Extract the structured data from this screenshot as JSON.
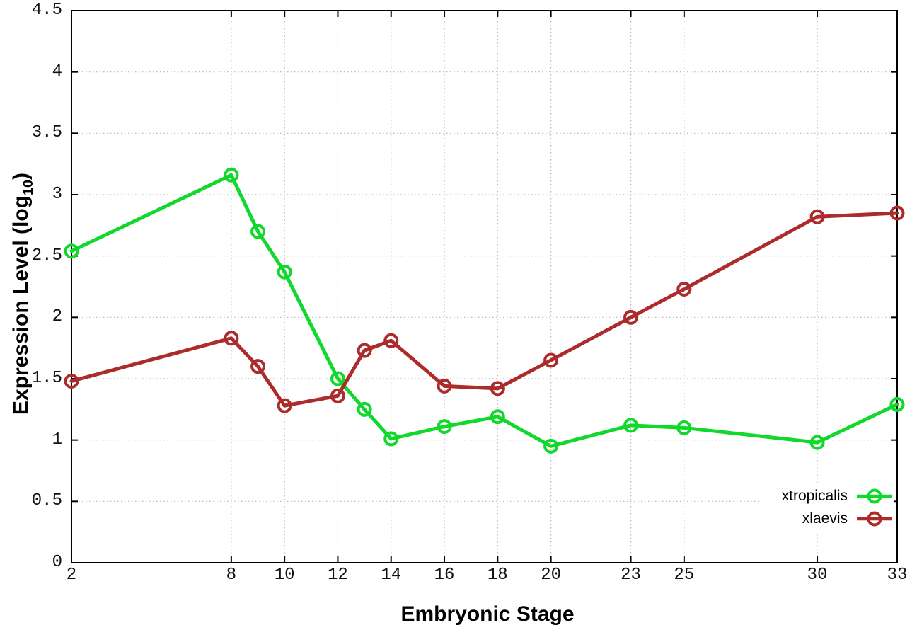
{
  "page": {
    "background": "#ffffff"
  },
  "style": {
    "axis_color": "#000000",
    "grid_color": "#b5b5b5",
    "tick_label_color": "#111111"
  },
  "chart_data": {
    "type": "line",
    "title": "",
    "xlabel": "Embryonic Stage",
    "ylabel": "Expression Level (log10)",
    "ylabel_parts": {
      "main": "Expression Level (log",
      "sub": "10",
      "end": ")"
    },
    "x": [
      2,
      8,
      9,
      10,
      12,
      13,
      14,
      16,
      18,
      20,
      23,
      25,
      30,
      33
    ],
    "xlim": [
      2,
      33
    ],
    "ylim": [
      0,
      4.5
    ],
    "x_ticks": [
      2,
      8,
      10,
      12,
      14,
      16,
      18,
      20,
      23,
      25,
      30,
      33
    ],
    "x_tick_labels": [
      "2",
      "8",
      "10",
      "12",
      "14",
      "16",
      "18",
      "20",
      "23",
      "25",
      "30",
      "33"
    ],
    "y_ticks": [
      0,
      0.5,
      1,
      1.5,
      2,
      2.5,
      3,
      3.5,
      4,
      4.5
    ],
    "y_tick_labels": [
      "0",
      "0.5",
      "1",
      "1.5",
      "2",
      "2.5",
      "3",
      "3.5",
      "4",
      "4.5"
    ],
    "grid": true,
    "legend_position": "inside-bottom-right",
    "marker": "open-circle",
    "series": [
      {
        "name": "xtropicalis",
        "color": "#10d92c",
        "values": [
          2.54,
          3.16,
          2.7,
          2.37,
          1.5,
          1.25,
          1.01,
          1.11,
          1.19,
          0.95,
          1.12,
          1.1,
          0.98,
          1.29
        ]
      },
      {
        "name": "xlaevis",
        "color": "#ac2b2b",
        "values": [
          1.48,
          1.83,
          1.6,
          1.28,
          1.36,
          1.73,
          1.81,
          1.44,
          1.42,
          1.65,
          2.0,
          2.23,
          2.82,
          2.85
        ]
      }
    ]
  }
}
